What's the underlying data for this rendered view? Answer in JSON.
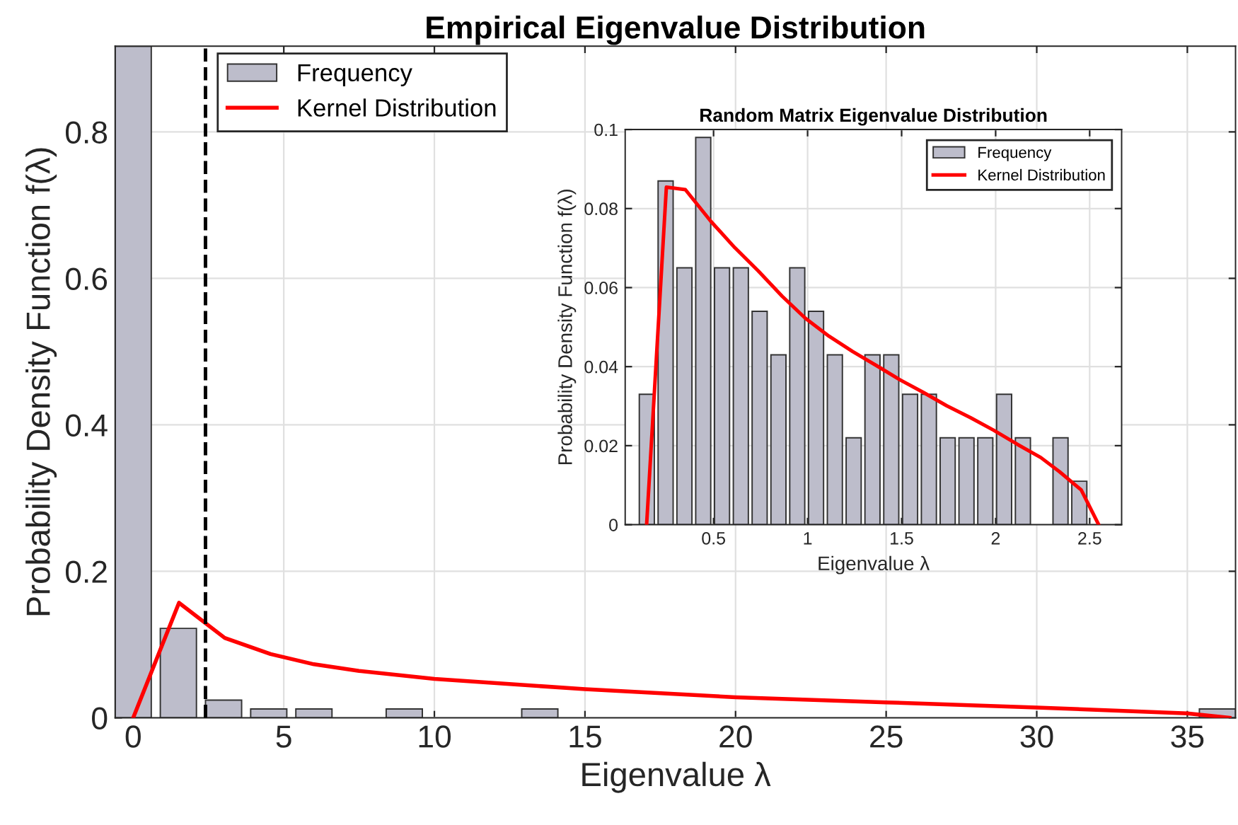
{
  "chart_data": [
    {
      "type": "bar",
      "title": "Empirical Eigenvalue Distribution",
      "xlabel": "Eigenvalue λ",
      "ylabel": "Probability Density Function f(λ)",
      "xlim": [
        -0.6,
        36.6
      ],
      "ylim": [
        0,
        0.917
      ],
      "xticks": [
        0,
        5,
        10,
        15,
        20,
        25,
        30,
        35
      ],
      "yticks": [
        0,
        0.2,
        0.4,
        0.6,
        0.8
      ],
      "grid": true,
      "legend": "top left",
      "series": [
        {
          "name": "Frequency",
          "color": "#bdbdcb",
          "x": [
            0,
            1.5,
            3,
            4.5,
            6,
            7.5,
            9,
            10.5,
            12,
            13.5,
            15,
            16.5,
            18,
            19.5,
            21,
            22.5,
            24,
            25.5,
            27,
            28.5,
            30,
            31.5,
            33,
            34.5,
            36
          ],
          "values": [
            0.917,
            0.122,
            0.024,
            0.012,
            0.012,
            0,
            0.012,
            0,
            0,
            0.012,
            0,
            0,
            0,
            0,
            0,
            0,
            0,
            0,
            0,
            0,
            0,
            0,
            0,
            0,
            0.012
          ]
        },
        {
          "name": "Kernel Distribution",
          "type": "line",
          "color": "#ff0000",
          "x": [
            0,
            1.52,
            3.04,
            4.56,
            6,
            7.5,
            10,
            15,
            20,
            25,
            30,
            35,
            36.4
          ],
          "values": [
            0,
            0.157,
            0.109,
            0.087,
            0.073,
            0.064,
            0.053,
            0.039,
            0.028,
            0.021,
            0.014,
            0.006,
            0
          ]
        }
      ],
      "ref_lines": [
        {
          "axis": "x",
          "value": 2.4,
          "color": "#000000",
          "line_style": "dashed"
        }
      ]
    },
    {
      "type": "bar",
      "title": "Random Matrix Eigenvalue Distribution",
      "xlabel": "Eigenvalue λ",
      "ylabel": "Probability Density Function f(λ)",
      "xlim": [
        0.03,
        2.67
      ],
      "ylim": [
        0,
        0.1
      ],
      "xticks": [
        0.5,
        1,
        1.5,
        2,
        2.5
      ],
      "yticks": [
        0,
        0.02,
        0.04,
        0.06,
        0.08,
        0.1
      ],
      "grid": true,
      "legend": "top right",
      "series": [
        {
          "name": "Frequency",
          "color": "#bdbdcb",
          "x": [
            0.145,
            0.245,
            0.345,
            0.445,
            0.545,
            0.645,
            0.745,
            0.845,
            0.945,
            1.045,
            1.145,
            1.245,
            1.345,
            1.445,
            1.545,
            1.645,
            1.745,
            1.845,
            1.945,
            2.045,
            2.145,
            2.245,
            2.345,
            2.445
          ],
          "values": [
            0.033,
            0.087,
            0.065,
            0.098,
            0.065,
            0.065,
            0.054,
            0.043,
            0.065,
            0.054,
            0.043,
            0.022,
            0.043,
            0.043,
            0.033,
            0.033,
            0.022,
            0.022,
            0.022,
            0.033,
            0.022,
            0,
            0.022,
            0.011
          ]
        },
        {
          "name": "Kernel Distribution",
          "type": "line",
          "color": "#ff0000",
          "x": [
            0.144,
            0.249,
            0.35,
            0.487,
            0.613,
            0.738,
            0.865,
            0.989,
            1.114,
            1.24,
            1.365,
            1.49,
            1.615,
            1.74,
            1.866,
            1.99,
            2.117,
            2.24,
            2.34,
            2.455,
            2.548
          ],
          "values": [
            0,
            0.0854,
            0.0848,
            0.0767,
            0.0701,
            0.0642,
            0.0578,
            0.0522,
            0.0477,
            0.0438,
            0.0403,
            0.0367,
            0.0335,
            0.0301,
            0.0271,
            0.0239,
            0.0203,
            0.017,
            0.0134,
            0.0088,
            0
          ]
        }
      ]
    }
  ]
}
